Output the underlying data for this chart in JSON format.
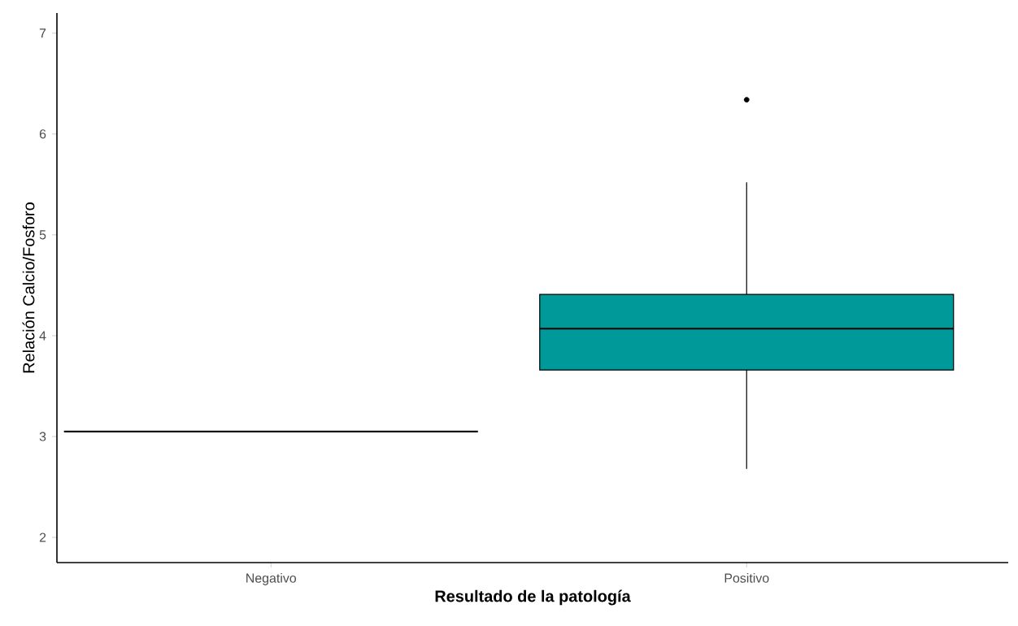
{
  "chart_data": {
    "type": "box",
    "xlabel": "Resultado de la patología",
    "ylabel": "Relación Calcio/Fosforo",
    "categories": [
      "Negativo",
      "Positivo"
    ],
    "colors": [
      "#000000",
      "#009999"
    ],
    "boxes": [
      {
        "low": 3.05,
        "q1": 3.05,
        "median": 3.05,
        "q3": 3.05,
        "high": 3.05
      },
      {
        "low": 2.68,
        "q1": 3.66,
        "median": 4.07,
        "q3": 4.41,
        "high": 5.52,
        "outliers": [
          6.34
        ]
      }
    ],
    "ylim": [
      1.75,
      7.2
    ],
    "yticks": [
      2,
      3,
      4,
      5,
      6,
      7
    ]
  }
}
